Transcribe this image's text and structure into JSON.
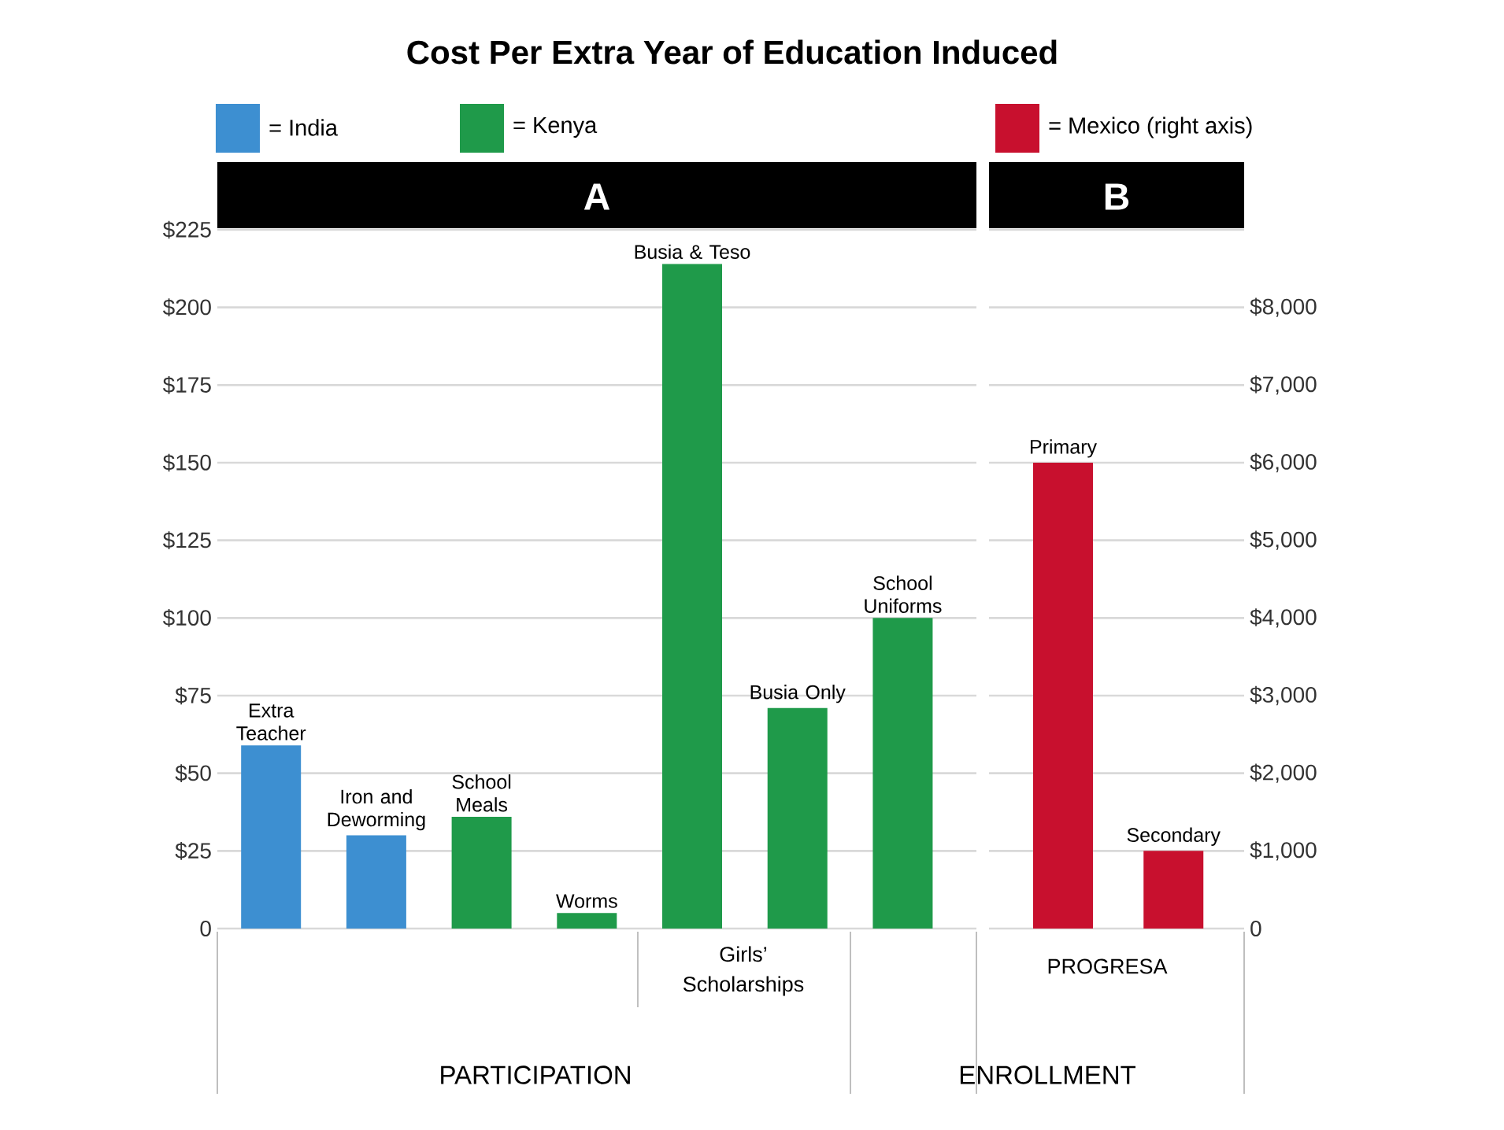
{
  "chart_data": [
    {
      "type": "bar",
      "title": "Cost Per Extra Year of Education Induced",
      "categories": [
        "Extra Teacher",
        "Iron and Deworming",
        "School Meals",
        "Worms",
        "Busia & Teso",
        "Busia Only",
        "School Uniforms"
      ],
      "series": [
        {
          "name": "= India",
          "color": "#3d8fd1",
          "values": [
            59,
            30,
            null,
            null,
            null,
            null,
            null
          ]
        },
        {
          "name": "= Kenya",
          "color": "#1f9a4a",
          "values": [
            null,
            null,
            36,
            5,
            214,
            71,
            100
          ]
        }
      ],
      "ylim": [
        0,
        225
      ],
      "yticks": [
        0,
        {
          "value": 25,
          "label": "$25"
        },
        {
          "value": 50,
          "label": "$50"
        },
        {
          "value": 75,
          "label": "$75"
        },
        {
          "value": 100,
          "label": "$100"
        },
        {
          "value": 125,
          "label": "$125"
        },
        {
          "value": 150,
          "label": "$150"
        },
        {
          "value": 175,
          "label": "$175"
        },
        {
          "value": 200,
          "label": "$200"
        },
        {
          "value": 225,
          "label": "$225"
        }
      ],
      "grid": "y",
      "legend": "top",
      "annotations": [
        "A",
        "Girls’ Scholarships",
        "PARTICIPATION"
      ]
    },
    {
      "type": "bar",
      "categories": [
        "Primary",
        "Secondary"
      ],
      "series": [
        {
          "name": "= Mexico (right axis)",
          "color": "#c8102e",
          "values": [
            6000,
            1000
          ]
        }
      ],
      "ylim": [
        0,
        9000
      ],
      "yticks": [
        0,
        {
          "value": 1000,
          "label": "$1,000"
        },
        {
          "value": 2000,
          "label": "$2,000"
        },
        {
          "value": 3000,
          "label": "$3,000"
        },
        {
          "value": 4000,
          "label": "$4,000"
        },
        {
          "value": 5000,
          "label": "$5,000"
        },
        {
          "value": 6000,
          "label": "$6,000"
        },
        {
          "value": 7000,
          "label": "$7,000"
        },
        {
          "value": 8000,
          "label": "$8,000"
        },
        {
          "value": 9000,
          "label": null
        }
      ],
      "grid": "y",
      "legend": "top",
      "annotations": [
        "B",
        "PROGRESA",
        "ENROLLMENT"
      ]
    }
  ]
}
